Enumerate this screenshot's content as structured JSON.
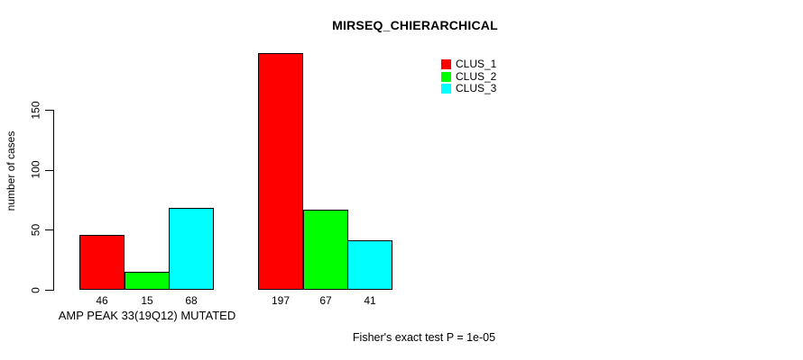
{
  "chart_data": {
    "type": "bar",
    "title": "MIRSEQ_CHIERARCHICAL",
    "ylabel": "number of cases",
    "xlabel": "AMP PEAK 33(19Q12) MUTATED",
    "annotation": "Fisher's exact test P = 1e-05",
    "categories": [
      "AMP PEAK 33(19Q12) MUTATED",
      ""
    ],
    "series": [
      {
        "name": "CLUS_1",
        "color": "#ff0000",
        "values": [
          46,
          197
        ]
      },
      {
        "name": "CLUS_2",
        "color": "#00ff00",
        "values": [
          15,
          67
        ]
      },
      {
        "name": "CLUS_3",
        "color": "#00ffff",
        "values": [
          68,
          41
        ]
      }
    ],
    "yticks": [
      0,
      50,
      100,
      150
    ],
    "ylim": [
      0,
      200
    ],
    "grid": false,
    "value_labels_shown": true,
    "legend_position": "top-right",
    "background": "#ffffff",
    "bar_border_color": "#000000"
  }
}
